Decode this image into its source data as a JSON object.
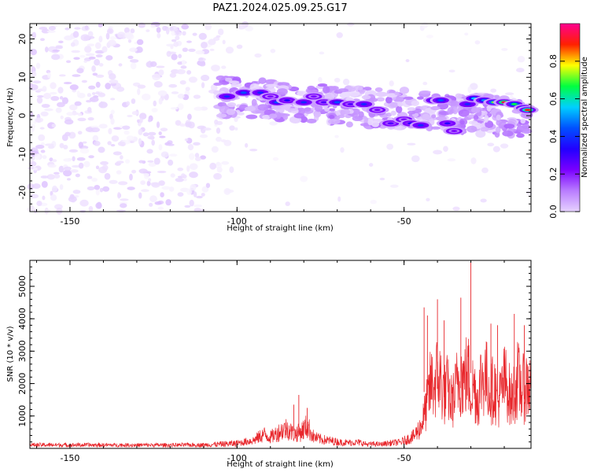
{
  "title": "PAZ1.2024.025.09.25.G17",
  "colors": {
    "snr_line": "#e8262b",
    "spectrogram_scale": [
      "#ffffff",
      "#e6d2ff",
      "#b97cff",
      "#7a00ff",
      "#2200ff",
      "#0050ff",
      "#00d0ff",
      "#00ff40",
      "#ffff00",
      "#ff2000",
      "#ff0090"
    ]
  },
  "chart_data": [
    {
      "type": "heatmap",
      "name": "spectrogram",
      "xlabel": "Height of straight line (km)",
      "ylabel": "Frequency (Hz)",
      "xlim": [
        -162,
        -12
      ],
      "ylim": [
        -25,
        24
      ],
      "xticks": [
        -150,
        -100,
        -50
      ],
      "yticks": [
        -20,
        -10,
        0,
        10,
        20
      ],
      "xtick_labels": [
        "-150",
        "-100",
        "-50"
      ],
      "ytick_labels": [
        "-20",
        "-10",
        "0",
        "10",
        "20"
      ],
      "colorbar": {
        "label": "Normalized spectral amplitude",
        "lim": [
          0,
          1
        ],
        "ticks": [
          0.0,
          0.2,
          0.4,
          0.6,
          0.8
        ],
        "tick_labels": [
          "0.0",
          "0.2",
          "0.4",
          "0.6",
          "0.8"
        ]
      },
      "blobs": [
        {
          "x": -103,
          "y": 5,
          "v": 0.45
        },
        {
          "x": -98,
          "y": 6,
          "v": 0.5
        },
        {
          "x": -93,
          "y": 6,
          "v": 0.45
        },
        {
          "x": -90,
          "y": 5,
          "v": 0.3
        },
        {
          "x": -88,
          "y": 3.5,
          "v": 0.5
        },
        {
          "x": -85,
          "y": 4,
          "v": 0.4
        },
        {
          "x": -80,
          "y": 3.5,
          "v": 0.45
        },
        {
          "x": -77,
          "y": 5,
          "v": 0.3
        },
        {
          "x": -74,
          "y": 3.5,
          "v": 0.35
        },
        {
          "x": -70,
          "y": 3.5,
          "v": 0.5
        },
        {
          "x": -66,
          "y": 3,
          "v": 0.35
        },
        {
          "x": -62,
          "y": 3,
          "v": 0.45
        },
        {
          "x": -58,
          "y": 1.5,
          "v": 0.3
        },
        {
          "x": -54,
          "y": -2,
          "v": 0.35
        },
        {
          "x": -50,
          "y": -1,
          "v": 0.3
        },
        {
          "x": -48,
          "y": -2,
          "v": 0.4
        },
        {
          "x": -45,
          "y": -2.5,
          "v": 0.45
        },
        {
          "x": -41,
          "y": 4,
          "v": 0.55
        },
        {
          "x": -39,
          "y": 4,
          "v": 0.5
        },
        {
          "x": -37,
          "y": -2,
          "v": 0.4
        },
        {
          "x": -35,
          "y": -4,
          "v": 0.3
        },
        {
          "x": -31,
          "y": 3,
          "v": 0.45
        },
        {
          "x": -29,
          "y": 4.5,
          "v": 0.6
        },
        {
          "x": -26,
          "y": 4,
          "v": 0.55
        },
        {
          "x": -23,
          "y": 3.5,
          "v": 0.75
        },
        {
          "x": -20,
          "y": 3.5,
          "v": 0.95
        },
        {
          "x": -17,
          "y": 3,
          "v": 0.7
        },
        {
          "x": -14,
          "y": 2,
          "v": 0.75
        },
        {
          "x": -13,
          "y": 1.5,
          "v": 0.9
        }
      ]
    },
    {
      "type": "line",
      "name": "snr",
      "xlabel": "Height of straight line (km)",
      "ylabel": "SNR (10 * v/v)",
      "xlim": [
        -162,
        -12
      ],
      "ylim": [
        0,
        5800
      ],
      "xticks": [
        -150,
        -100,
        -50
      ],
      "yticks": [
        1000,
        2000,
        3000,
        4000,
        5000
      ],
      "xtick_labels": [
        "-150",
        "-100",
        "-50"
      ],
      "ytick_labels": [
        "1000",
        "2000",
        "3000",
        "4000",
        "5000"
      ],
      "envelope": {
        "x": [
          -162,
          -140,
          -120,
          -110,
          -100,
          -95,
          -92,
          -90,
          -87,
          -85,
          -83,
          -81,
          -79,
          -77,
          -75,
          -73,
          -71,
          -69,
          -67,
          -65,
          -63,
          -61,
          -59,
          -57,
          -55,
          -53,
          -51,
          -49,
          -47,
          -45,
          -44,
          -43,
          -42,
          -41,
          -40,
          -39,
          -38,
          -37,
          -36,
          -35,
          -34,
          -33,
          -32,
          -31,
          -30,
          -29,
          -28,
          -27,
          -26,
          -25,
          -24,
          -23,
          -22,
          -21,
          -20,
          -19,
          -18,
          -17,
          -16,
          -15,
          -14,
          -13,
          -12
        ],
        "y": [
          150,
          140,
          140,
          150,
          250,
          400,
          700,
          550,
          850,
          1000,
          700,
          800,
          1100,
          550,
          450,
          400,
          350,
          300,
          280,
          300,
          280,
          200,
          220,
          200,
          250,
          280,
          300,
          450,
          600,
          1100,
          1600,
          2300,
          3200,
          3100,
          3600,
          3300,
          2600,
          3000,
          2300,
          2500,
          3300,
          3600,
          3300,
          3800,
          2900,
          3100,
          2300,
          3400,
          3600,
          3300,
          2700,
          3100,
          2200,
          2700,
          3300,
          3100,
          2300,
          2800,
          3400,
          3000,
          2900,
          3200,
          3000
        ]
      },
      "spikes": [
        {
          "x": -81.5,
          "y": 1650
        },
        {
          "x": -79,
          "y": 1250
        },
        {
          "x": -83,
          "y": 1350
        },
        {
          "x": -44,
          "y": 4350
        },
        {
          "x": -43,
          "y": 4100
        },
        {
          "x": -40,
          "y": 4600
        },
        {
          "x": -38,
          "y": 3950
        },
        {
          "x": -33,
          "y": 4650
        },
        {
          "x": -30,
          "y": 5800
        },
        {
          "x": -24,
          "y": 3850
        },
        {
          "x": -22,
          "y": 3800
        },
        {
          "x": -17,
          "y": 4150
        },
        {
          "x": -14,
          "y": 3800
        }
      ]
    }
  ]
}
